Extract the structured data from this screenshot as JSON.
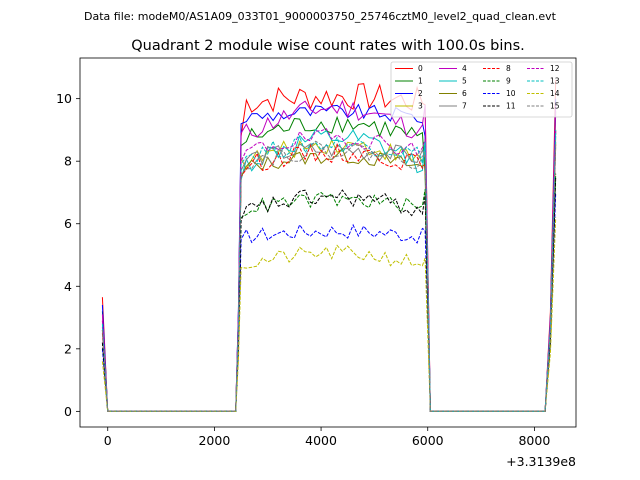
{
  "figure": {
    "suptitle": "Data file: modeM0/AS1A09_033T01_9000003750_25746cztM0_level2_quad_clean.evt"
  },
  "chart_data": {
    "type": "line",
    "title": "Quadrant 2 module wise count rates with 100.0s bins.",
    "xlabel": "",
    "ylabel": "",
    "x_offset_label": "+3.3139e8",
    "xlim": [
      -520,
      8780
    ],
    "ylim": [
      -0.5,
      11.3
    ],
    "x_ticks": [
      0,
      2000,
      4000,
      6000,
      8000
    ],
    "x_tick_labels": [
      "0",
      "2000",
      "4000",
      "6000",
      "8000"
    ],
    "y_ticks": [
      0,
      2,
      4,
      6,
      8,
      10
    ],
    "y_tick_labels": [
      "0",
      "2",
      "4",
      "6",
      "8",
      "10"
    ],
    "grid": false,
    "legend_position": "top-right",
    "segments": [
      {
        "x_start": -100,
        "x_end": 0
      },
      {
        "x_start": 2400,
        "x_end": 6000
      },
      {
        "x_start": 8200,
        "x_end": 8400
      }
    ],
    "series": [
      {
        "name": "0",
        "color": "#ff0000",
        "dash": "solid",
        "first": 3.65,
        "level": 9.9,
        "amp": 0.45,
        "ramp": 8.8,
        "rise": 10.1,
        "end": 9.8,
        "last": 10.6
      },
      {
        "name": "1",
        "color": "#008000",
        "dash": "solid",
        "first": 3.2,
        "level": 8.7,
        "amp": 0.35,
        "ramp": 8.5,
        "rise": 9.3,
        "end": 7.6,
        "last": 9.6
      },
      {
        "name": "2",
        "color": "#0000ff",
        "dash": "solid",
        "first": 3.4,
        "level": 9.4,
        "amp": 0.25,
        "ramp": 9.2,
        "rise": 9.6,
        "end": 8.8,
        "last": 10.0
      },
      {
        "name": "3",
        "color": "#bfbf00",
        "dash": "solid",
        "first": 2.9,
        "level": 8.0,
        "amp": 0.3,
        "ramp": 8.1,
        "rise": 8.6,
        "end": 8.3,
        "last": 9.0
      },
      {
        "name": "4",
        "color": "#bf00bf",
        "dash": "solid",
        "first": 3.1,
        "level": 8.9,
        "amp": 0.35,
        "ramp": 8.9,
        "rise": 9.8,
        "end": 9.8,
        "last": 9.8
      },
      {
        "name": "5",
        "color": "#00bfbf",
        "dash": "solid",
        "first": 2.7,
        "level": 7.9,
        "amp": 0.35,
        "ramp": 7.4,
        "rise": 8.8,
        "end": 8.7,
        "last": 9.0
      },
      {
        "name": "6",
        "color": "#808000",
        "dash": "solid",
        "first": 2.6,
        "level": 7.8,
        "amp": 0.25,
        "ramp": 7.5,
        "rise": 8.2,
        "end": 7.9,
        "last": 8.6
      },
      {
        "name": "7",
        "color": "#808080",
        "dash": "solid",
        "first": 2.6,
        "level": 8.1,
        "amp": 0.3,
        "ramp": 7.7,
        "rise": 8.4,
        "end": 8.1,
        "last": 8.8
      },
      {
        "name": "8",
        "color": "#ff0000",
        "dash": "dashed",
        "first": 2.5,
        "level": 7.9,
        "amp": 0.3,
        "ramp": 7.5,
        "rise": 8.3,
        "end": 7.9,
        "last": 8.5
      },
      {
        "name": "9",
        "color": "#008000",
        "dash": "dashed",
        "first": 2.2,
        "level": 6.5,
        "amp": 0.25,
        "ramp": 6.2,
        "rise": 6.8,
        "end": 7.1,
        "last": 7.6
      },
      {
        "name": "10",
        "color": "#0000ff",
        "dash": "dashed",
        "first": 2.0,
        "level": 5.6,
        "amp": 0.25,
        "ramp": 5.5,
        "rise": 5.8,
        "end": 5.8,
        "last": 7.0
      },
      {
        "name": "11",
        "color": "#000000",
        "dash": "dashed",
        "first": 2.2,
        "level": 6.4,
        "amp": 0.3,
        "ramp": 6.1,
        "rise": 6.9,
        "end": 6.9,
        "last": 7.5
      },
      {
        "name": "12",
        "color": "#bf00bf",
        "dash": "dashed",
        "first": 2.9,
        "level": 8.3,
        "amp": 0.3,
        "ramp": 8.0,
        "rise": 8.8,
        "end": 8.7,
        "last": 9.0
      },
      {
        "name": "13",
        "color": "#00bfbf",
        "dash": "dashed",
        "first": 2.8,
        "level": 8.2,
        "amp": 0.3,
        "ramp": 7.9,
        "rise": 8.6,
        "end": 8.6,
        "last": 8.9
      },
      {
        "name": "14",
        "color": "#bfbf00",
        "dash": "dashed",
        "first": 1.6,
        "level": 4.7,
        "amp": 0.25,
        "ramp": 4.6,
        "rise": 5.1,
        "end": 4.9,
        "last": 6.2
      },
      {
        "name": "15",
        "color": "#808080",
        "dash": "dashed",
        "first": 2.6,
        "level": 8.0,
        "amp": 0.3,
        "ramp": 7.6,
        "rise": 8.4,
        "end": 8.2,
        "last": 8.6
      }
    ]
  }
}
